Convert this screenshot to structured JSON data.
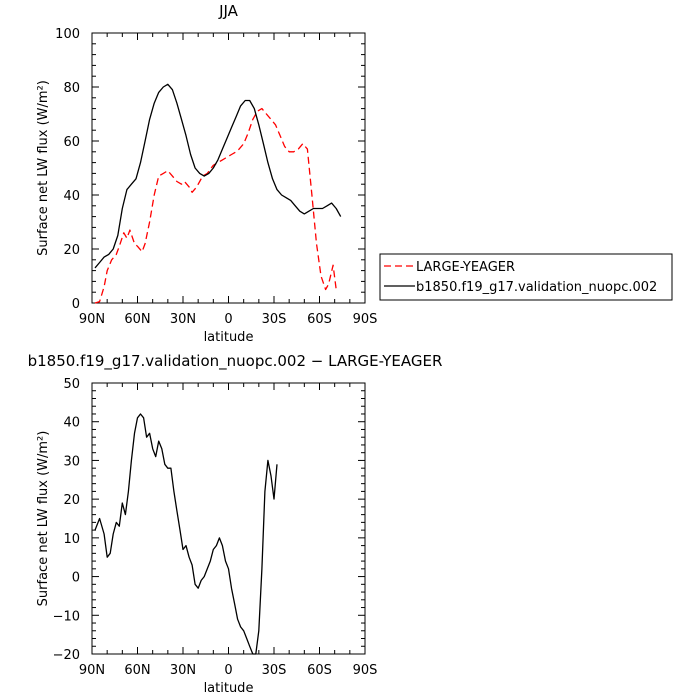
{
  "chart_data": [
    {
      "type": "line",
      "title": "JJA",
      "xlabel": "latitude",
      "ylabel": "Surface net LW flux (W/m²)",
      "xlim": [
        90,
        -90
      ],
      "ylim": [
        0,
        100
      ],
      "x_tick_values": [
        90,
        60,
        30,
        0,
        -30,
        -60,
        -90
      ],
      "x_tick_labels": [
        "90N",
        "60N",
        "30N",
        "0",
        "30S",
        "60S",
        "90S"
      ],
      "y_tick_values": [
        0,
        20,
        40,
        60,
        80,
        100
      ],
      "y_tick_labels": [
        "0",
        "20",
        "40",
        "60",
        "80",
        "100"
      ],
      "legend_placement": "outside-right",
      "series": [
        {
          "name": "LARGE-YEAGER",
          "color": "#ff0000",
          "style": "dashed",
          "points": [
            [
              88,
              0
            ],
            [
              85,
              0.5
            ],
            [
              82,
              6
            ],
            [
              80,
              12
            ],
            [
              77,
              16
            ],
            [
              74,
              18
            ],
            [
              72,
              21
            ],
            [
              69,
              26
            ],
            [
              67,
              24
            ],
            [
              65,
              27
            ],
            [
              62,
              22
            ],
            [
              60,
              21
            ],
            [
              57,
              19
            ],
            [
              55,
              22
            ],
            [
              52,
              30
            ],
            [
              49,
              40
            ],
            [
              46,
              47
            ],
            [
              43,
              48
            ],
            [
              40,
              49
            ],
            [
              37,
              47
            ],
            [
              34,
              45
            ],
            [
              31,
              44
            ],
            [
              29,
              45
            ],
            [
              26,
              43
            ],
            [
              24,
              41
            ],
            [
              21,
              43
            ],
            [
              19,
              45
            ],
            [
              17,
              47
            ],
            [
              14,
              48
            ],
            [
              10,
              51
            ],
            [
              7,
              52
            ],
            [
              4,
              53
            ],
            [
              1,
              54
            ],
            [
              -2,
              55
            ],
            [
              -5,
              56
            ],
            [
              -7,
              57
            ],
            [
              -10,
              59
            ],
            [
              -13,
              63
            ],
            [
              -16,
              68
            ],
            [
              -19,
              71
            ],
            [
              -22,
              72
            ],
            [
              -25,
              70
            ],
            [
              -28,
              68
            ],
            [
              -31,
              66
            ],
            [
              -34,
              62
            ],
            [
              -37,
              58
            ],
            [
              -40,
              56
            ],
            [
              -43,
              56
            ],
            [
              -46,
              57
            ],
            [
              -49,
              59
            ],
            [
              -52,
              57
            ],
            [
              -55,
              40
            ],
            [
              -58,
              22
            ],
            [
              -61,
              10
            ],
            [
              -64,
              5
            ],
            [
              -66,
              7
            ],
            [
              -69,
              14
            ],
            [
              -71,
              5
            ]
          ]
        },
        {
          "name": "b1850.f19_g17.validation_nuopc.002",
          "color": "#000000",
          "style": "solid",
          "points": [
            [
              88,
              13
            ],
            [
              85,
              15
            ],
            [
              82,
              17
            ],
            [
              79,
              18
            ],
            [
              76,
              20
            ],
            [
              73,
              25
            ],
            [
              70,
              35
            ],
            [
              67,
              42
            ],
            [
              64,
              44
            ],
            [
              61,
              46
            ],
            [
              58,
              52
            ],
            [
              55,
              60
            ],
            [
              52,
              68
            ],
            [
              49,
              74
            ],
            [
              46,
              78
            ],
            [
              43,
              80
            ],
            [
              40,
              81
            ],
            [
              37,
              79
            ],
            [
              34,
              74
            ],
            [
              31,
              68
            ],
            [
              28,
              62
            ],
            [
              25,
              55
            ],
            [
              22,
              50
            ],
            [
              19,
              48
            ],
            [
              16,
              47
            ],
            [
              13,
              48
            ],
            [
              10,
              50
            ],
            [
              7,
              53
            ],
            [
              4,
              57
            ],
            [
              1,
              61
            ],
            [
              -2,
              65
            ],
            [
              -5,
              69
            ],
            [
              -8,
              73
            ],
            [
              -11,
              75
            ],
            [
              -14,
              75
            ],
            [
              -17,
              72
            ],
            [
              -20,
              66
            ],
            [
              -23,
              59
            ],
            [
              -26,
              52
            ],
            [
              -29,
              46
            ],
            [
              -32,
              42
            ],
            [
              -35,
              40
            ],
            [
              -38,
              39
            ],
            [
              -41,
              38
            ],
            [
              -44,
              36
            ],
            [
              -47,
              34
            ],
            [
              -50,
              33
            ],
            [
              -53,
              34
            ],
            [
              -56,
              35
            ],
            [
              -59,
              35
            ],
            [
              -62,
              35
            ],
            [
              -65,
              36
            ],
            [
              -68,
              37
            ],
            [
              -71,
              35
            ],
            [
              -74,
              32
            ]
          ]
        }
      ]
    },
    {
      "type": "line",
      "title": "b1850.f19_g17.validation_nuopc.002 − LARGE-YEAGER",
      "xlabel": "latitude",
      "ylabel": "Surface net LW flux (W/m²)",
      "xlim": [
        90,
        -90
      ],
      "ylim": [
        -20,
        50
      ],
      "x_tick_values": [
        90,
        60,
        30,
        0,
        -30,
        -60,
        -90
      ],
      "x_tick_labels": [
        "90N",
        "60N",
        "30N",
        "0",
        "30S",
        "60S",
        "90S"
      ],
      "y_tick_values": [
        -20,
        -10,
        0,
        10,
        20,
        30,
        40,
        50
      ],
      "y_tick_labels": [
        "−20",
        "−10",
        "0",
        "10",
        "20",
        "30",
        "40",
        "50"
      ],
      "series": [
        {
          "color": "#000000",
          "style": "solid",
          "points": [
            [
              88,
              12
            ],
            [
              85,
              15
            ],
            [
              82,
              11
            ],
            [
              80,
              5
            ],
            [
              78,
              6
            ],
            [
              76,
              11
            ],
            [
              74,
              14
            ],
            [
              72,
              13
            ],
            [
              70,
              19
            ],
            [
              68,
              16
            ],
            [
              66,
              22
            ],
            [
              64,
              30
            ],
            [
              62,
              37
            ],
            [
              60,
              41
            ],
            [
              58,
              42
            ],
            [
              56,
              41
            ],
            [
              54,
              36
            ],
            [
              52,
              37
            ],
            [
              50,
              33
            ],
            [
              48,
              31
            ],
            [
              46,
              35
            ],
            [
              44,
              33
            ],
            [
              42,
              29
            ],
            [
              40,
              28
            ],
            [
              38,
              28
            ],
            [
              36,
              22
            ],
            [
              34,
              17
            ],
            [
              32,
              12
            ],
            [
              30,
              7
            ],
            [
              28,
              8
            ],
            [
              26,
              5
            ],
            [
              24,
              3
            ],
            [
              22,
              -2
            ],
            [
              20,
              -3
            ],
            [
              18,
              -1
            ],
            [
              16,
              0
            ],
            [
              14,
              2
            ],
            [
              12,
              4
            ],
            [
              10,
              7
            ],
            [
              8,
              8
            ],
            [
              6,
              10
            ],
            [
              4,
              8
            ],
            [
              2,
              4
            ],
            [
              0,
              2
            ],
            [
              -2,
              -3
            ],
            [
              -4,
              -7
            ],
            [
              -6,
              -11
            ],
            [
              -8,
              -13
            ],
            [
              -10,
              -14
            ],
            [
              -12,
              -16
            ],
            [
              -14,
              -18
            ],
            [
              -16,
              -20
            ],
            [
              -18,
              -20
            ],
            [
              -20,
              -14
            ],
            [
              -22,
              2
            ],
            [
              -24,
              22
            ],
            [
              -26,
              30
            ],
            [
              -28,
              26
            ],
            [
              -30,
              20
            ],
            [
              -32,
              29
            ]
          ]
        }
      ]
    }
  ]
}
